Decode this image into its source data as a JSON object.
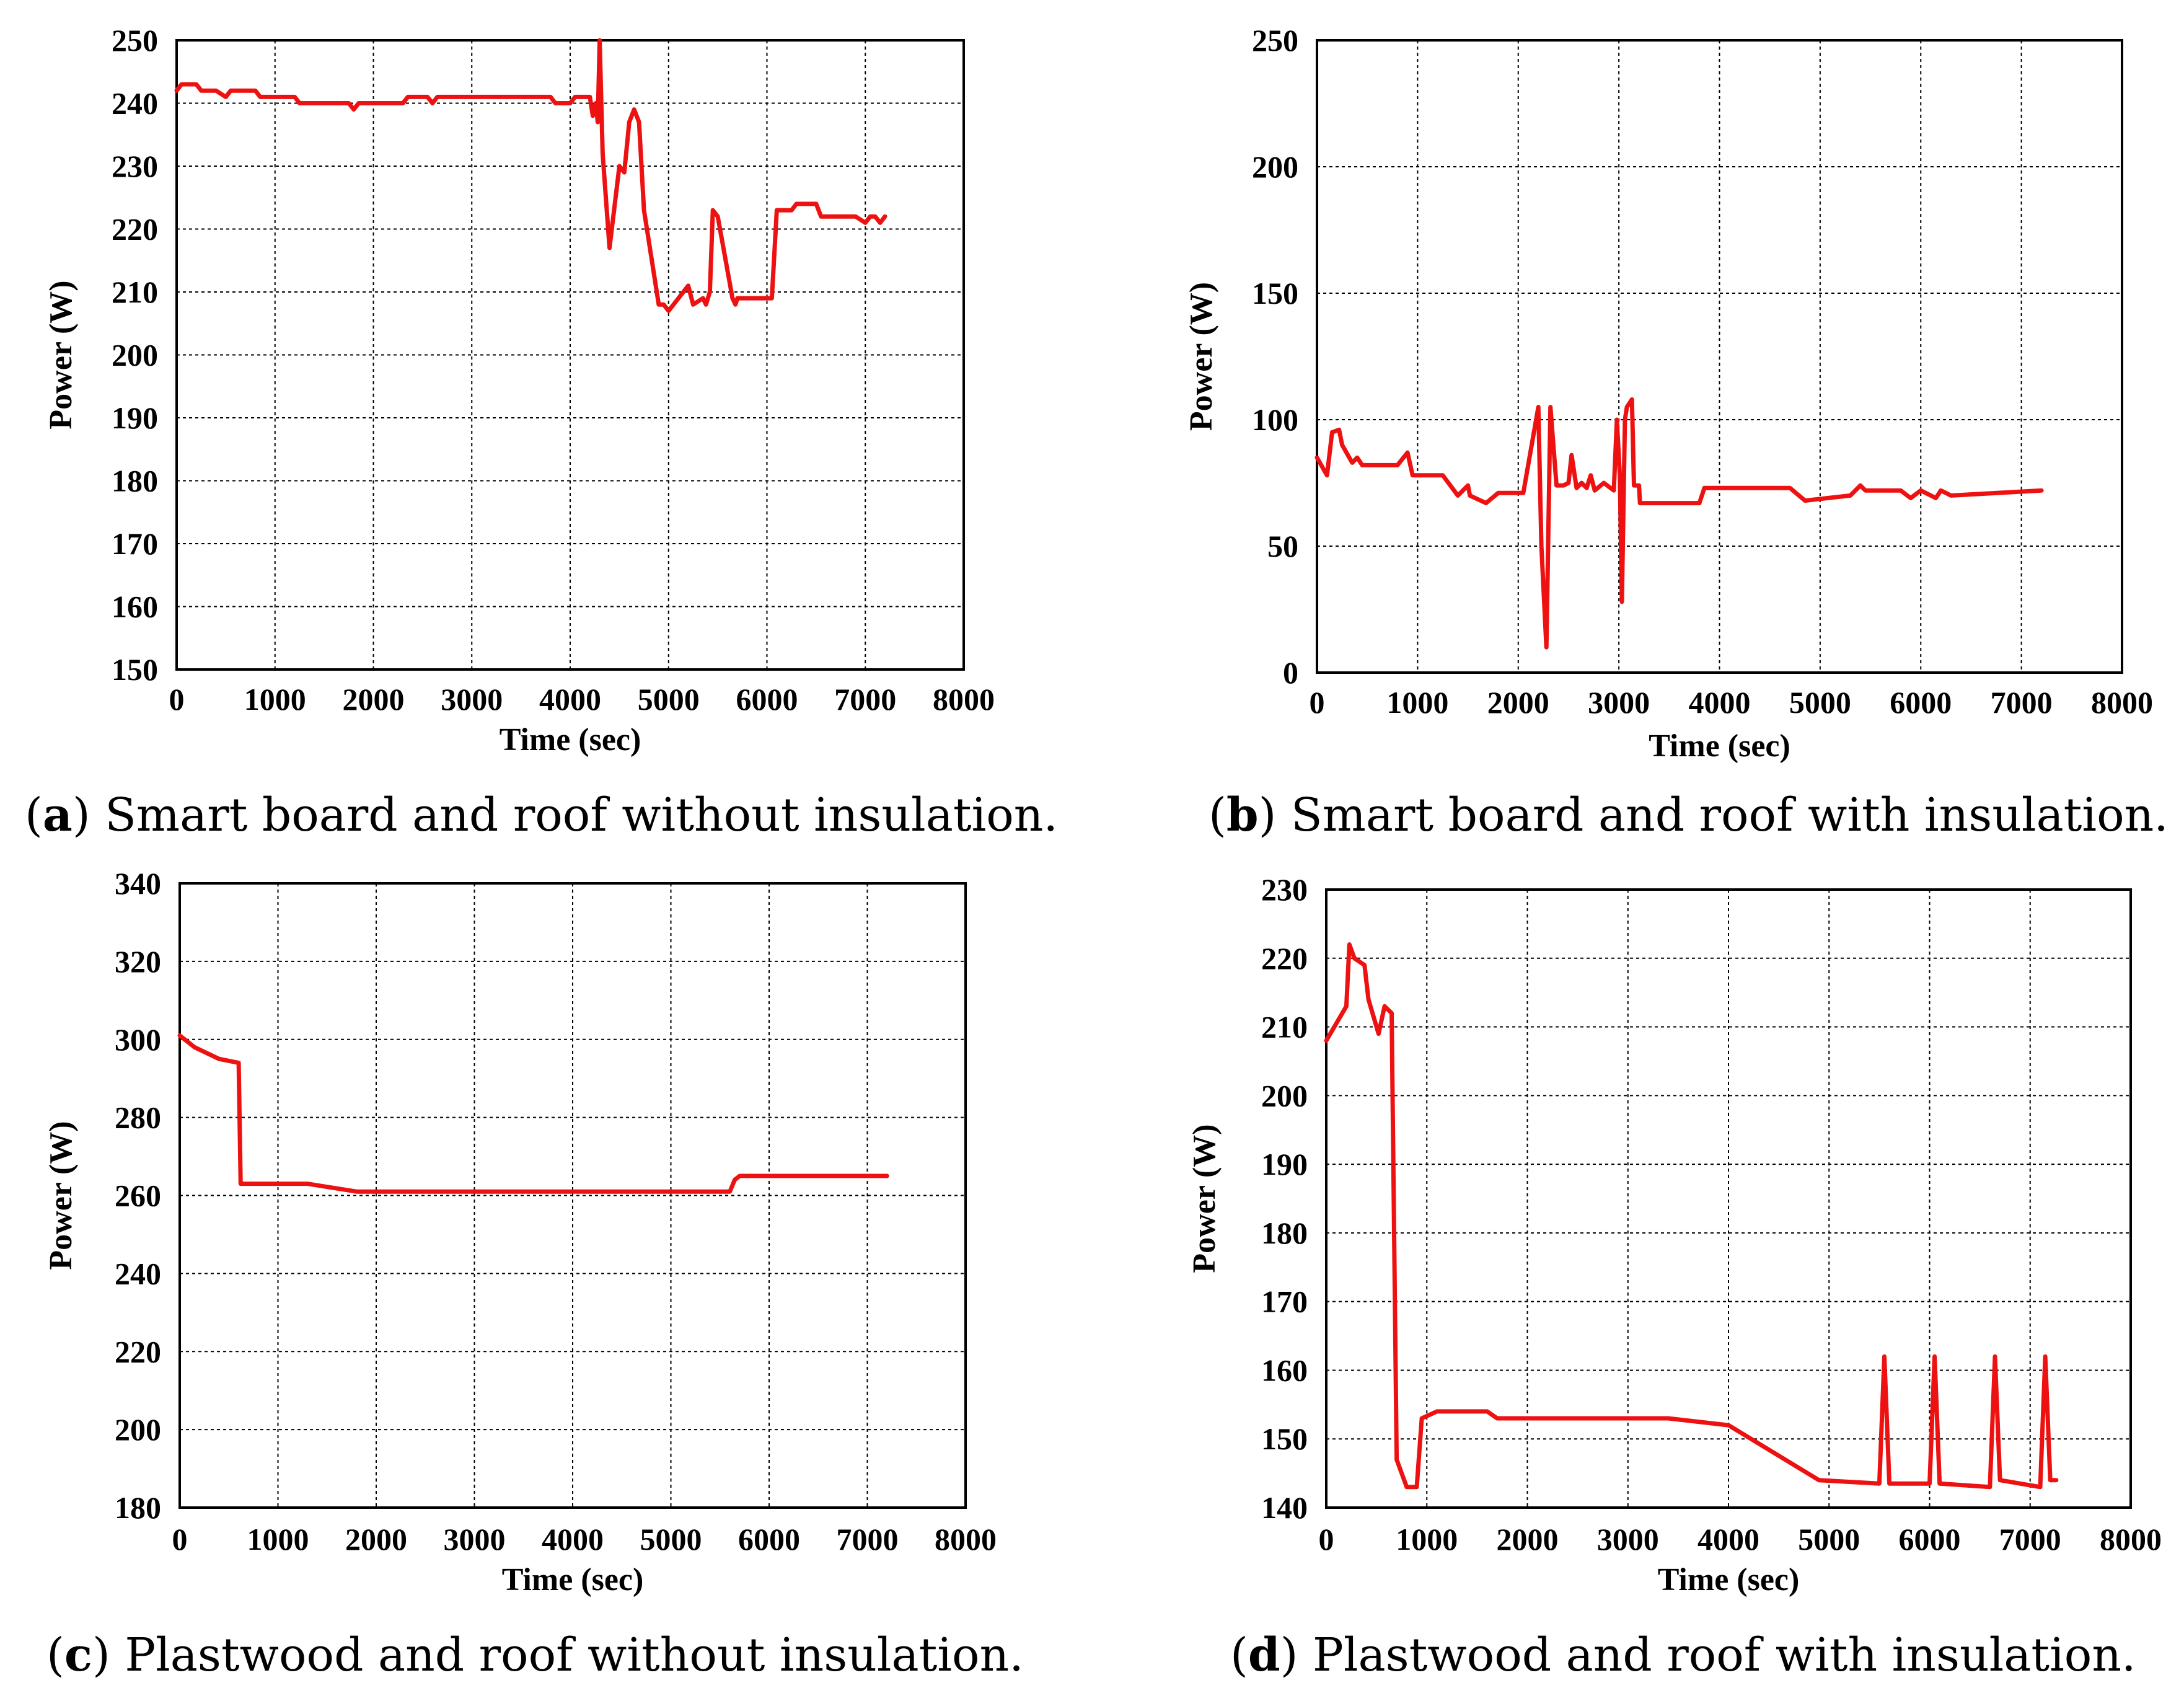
{
  "colors": {
    "series": "#ee1111",
    "axis": "#000000"
  },
  "chart_data": [
    {
      "type": "line",
      "title": "",
      "caption": {
        "letter": "a",
        "text": "Smart board and roof without insulation."
      },
      "xlabel": "Time (sec)",
      "ylabel": "Power (W)",
      "xlim": [
        0,
        8000
      ],
      "ylim": [
        150,
        250
      ],
      "xticks": [
        0,
        1000,
        2000,
        3000,
        4000,
        5000,
        6000,
        7000,
        8000
      ],
      "yticks": [
        150,
        160,
        170,
        180,
        190,
        200,
        210,
        220,
        230,
        240,
        250
      ],
      "grid": true,
      "series": [
        {
          "name": "Power",
          "x": [
            0,
            50,
            200,
            250,
            400,
            500,
            550,
            800,
            850,
            1200,
            1250,
            1750,
            1800,
            1850,
            2300,
            2350,
            2550,
            2600,
            2650,
            2700,
            3800,
            3850,
            4000,
            4050,
            4200,
            4230,
            4260,
            4280,
            4300,
            4330,
            4400,
            4500,
            4550,
            4600,
            4650,
            4700,
            4750,
            4900,
            4950,
            5000,
            5200,
            5250,
            5350,
            5380,
            5420,
            5450,
            5500,
            5650,
            5680,
            5700,
            5750,
            6050,
            6100,
            6250,
            6300,
            6500,
            6550,
            6850,
            6900,
            7000,
            7050,
            7100,
            7150,
            7200
          ],
          "values": [
            242,
            243,
            243,
            242,
            242,
            241,
            242,
            242,
            241,
            241,
            240,
            240,
            239,
            240,
            240,
            241,
            241,
            240,
            241,
            241,
            241,
            240,
            240,
            241,
            241,
            238,
            240,
            237,
            250,
            232,
            217,
            230,
            229,
            237,
            239,
            237,
            223,
            208,
            208,
            207,
            211,
            208,
            209,
            208,
            210,
            223,
            222,
            209,
            208,
            209,
            209,
            209,
            223,
            223,
            224,
            224,
            222,
            222,
            222,
            221,
            222,
            222,
            221,
            222
          ]
        }
      ]
    },
    {
      "type": "line",
      "title": "",
      "caption": {
        "letter": "b",
        "text": "Smart board and roof with insulation."
      },
      "xlabel": "Time (sec)",
      "ylabel": "Power (W)",
      "xlim": [
        0,
        8000
      ],
      "ylim": [
        0,
        250
      ],
      "xticks": [
        0,
        1000,
        2000,
        3000,
        4000,
        5000,
        6000,
        7000,
        8000
      ],
      "yticks": [
        0,
        50,
        100,
        150,
        200,
        250
      ],
      "grid": true,
      "series": [
        {
          "name": "Power",
          "x": [
            0,
            100,
            150,
            220,
            250,
            350,
            400,
            450,
            800,
            900,
            950,
            1250,
            1400,
            1500,
            1520,
            1680,
            1800,
            2050,
            2200,
            2230,
            2280,
            2320,
            2380,
            2450,
            2500,
            2530,
            2580,
            2630,
            2680,
            2720,
            2760,
            2850,
            2950,
            2980,
            3010,
            3030,
            3060,
            3080,
            3130,
            3150,
            3200,
            3210,
            3800,
            3850,
            4700,
            4850,
            5300,
            5400,
            5450,
            5800,
            5900,
            6000,
            6100,
            6150,
            6200,
            6250,
            6300,
            7200
          ],
          "values": [
            85,
            78,
            95,
            96,
            90,
            83,
            85,
            82,
            82,
            87,
            78,
            78,
            70,
            74,
            70,
            67,
            71,
            71,
            105,
            50,
            10,
            105,
            74,
            74,
            75,
            86,
            73,
            75,
            73,
            78,
            72,
            75,
            72,
            100,
            78,
            28,
            100,
            105,
            108,
            74,
            74,
            67,
            67,
            73,
            73,
            68,
            70,
            74,
            72,
            72,
            69,
            72,
            70,
            69,
            72,
            71,
            70,
            72
          ]
        }
      ]
    },
    {
      "type": "line",
      "title": "",
      "caption": {
        "letter": "c",
        "text": "Plastwood and roof without insulation."
      },
      "xlabel": "Time (sec)",
      "ylabel": "Power (W)",
      "xlim": [
        0,
        8000
      ],
      "ylim": [
        180,
        340
      ],
      "xticks": [
        0,
        1000,
        2000,
        3000,
        4000,
        5000,
        6000,
        7000,
        8000
      ],
      "yticks": [
        180,
        200,
        220,
        240,
        260,
        280,
        300,
        320,
        340
      ],
      "grid": true,
      "series": [
        {
          "name": "Power",
          "x": [
            0,
            150,
            400,
            600,
            620,
            1300,
            1800,
            5600,
            5650,
            5700,
            7200
          ],
          "values": [
            301,
            298,
            295,
            294,
            263,
            263,
            261,
            261,
            264,
            265,
            265
          ]
        }
      ]
    },
    {
      "type": "line",
      "title": "",
      "caption": {
        "letter": "d",
        "text": "Plastwood and roof with insulation."
      },
      "xlabel": "Time (sec)",
      "ylabel": "Power (W)",
      "xlim": [
        0,
        8000
      ],
      "ylim": [
        140,
        230
      ],
      "xticks": [
        0,
        1000,
        2000,
        3000,
        4000,
        5000,
        6000,
        7000,
        8000
      ],
      "yticks": [
        140,
        150,
        160,
        170,
        180,
        190,
        200,
        210,
        220,
        230
      ],
      "grid": true,
      "series": [
        {
          "name": "Power",
          "x": [
            0,
            200,
            230,
            280,
            380,
            420,
            520,
            580,
            650,
            700,
            800,
            900,
            950,
            1100,
            1600,
            1700,
            3400,
            4000,
            4900,
            5500,
            5550,
            5600,
            6000,
            6050,
            6100,
            6600,
            6650,
            6700,
            7100,
            7150,
            7200,
            7260
          ],
          "values": [
            208,
            213,
            222,
            220,
            219,
            214,
            209,
            213,
            212,
            147,
            143,
            143,
            153,
            154,
            154,
            153,
            153,
            152,
            144,
            143.5,
            162,
            143.5,
            143.5,
            162,
            143.5,
            143,
            162,
            144,
            143,
            162,
            144,
            144
          ]
        }
      ]
    }
  ]
}
